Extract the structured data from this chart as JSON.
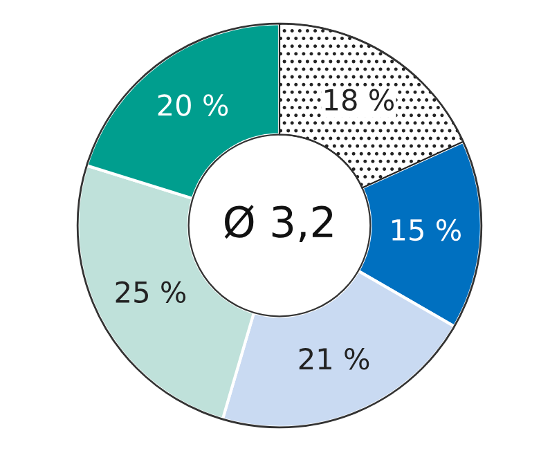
{
  "chart_data": {
    "type": "donut",
    "categories": [
      null,
      null,
      null,
      null,
      null
    ],
    "values": [
      18,
      15,
      21,
      25,
      20
    ],
    "colors": [
      "#ffffff",
      "#0070c0",
      "#c9daf2",
      "#bfe1da",
      "#009e8e"
    ],
    "value_labels": [
      "18 %",
      "15 %",
      "21 %",
      "25 %",
      "20 %"
    ],
    "annotations": [
      "Ø 3,2"
    ],
    "legend": false
  }
}
